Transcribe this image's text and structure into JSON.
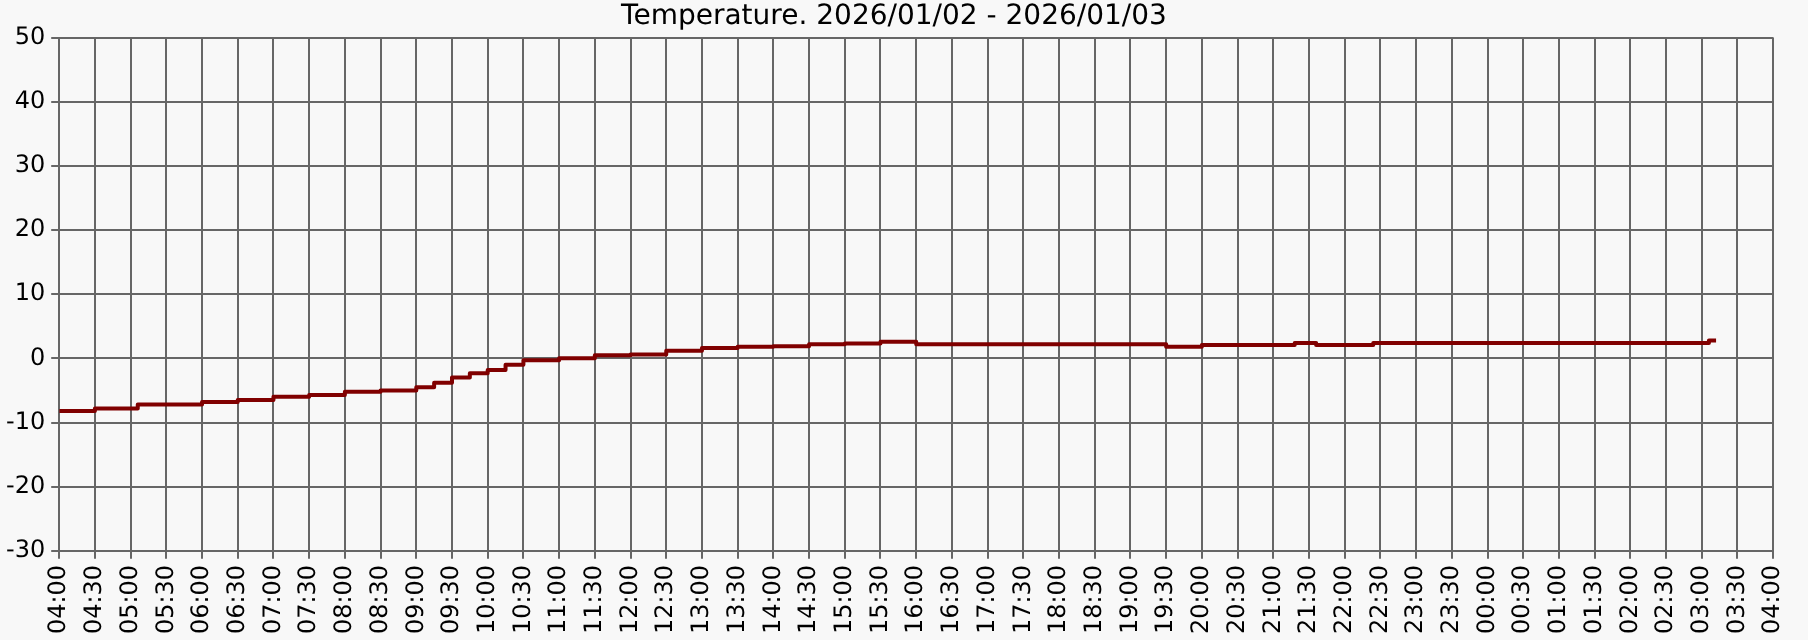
{
  "chart_data": {
    "type": "step",
    "title": "Temperature. 2026/01/02 - 2026/01/03",
    "x": [
      "2026-01-02T04:00",
      "2026-01-02T04:30",
      "2026-01-02T05:06",
      "2026-01-02T06:00",
      "2026-01-02T06:30",
      "2026-01-02T07:00",
      "2026-01-02T07:30",
      "2026-01-02T08:00",
      "2026-01-02T08:30",
      "2026-01-02T09:00",
      "2026-01-02T09:15",
      "2026-01-02T09:30",
      "2026-01-02T09:45",
      "2026-01-02T10:00",
      "2026-01-02T10:15",
      "2026-01-02T10:30",
      "2026-01-02T11:00",
      "2026-01-02T11:30",
      "2026-01-02T12:00",
      "2026-01-02T12:30",
      "2026-01-02T13:00",
      "2026-01-02T13:30",
      "2026-01-02T14:00",
      "2026-01-02T14:30",
      "2026-01-02T15:00",
      "2026-01-02T15:30",
      "2026-01-02T16:00",
      "2026-01-02T17:00",
      "2026-01-02T18:00",
      "2026-01-02T19:00",
      "2026-01-02T19:30",
      "2026-01-02T20:00",
      "2026-01-02T21:00",
      "2026-01-02T21:18",
      "2026-01-02T21:36",
      "2026-01-02T22:00",
      "2026-01-02T22:24",
      "2026-01-02T23:00",
      "2026-01-03T00:00",
      "2026-01-03T01:00",
      "2026-01-03T02:00",
      "2026-01-03T03:00",
      "2026-01-03T03:06",
      "2026-01-03T03:12"
    ],
    "values": [
      -8.2,
      -7.8,
      -7.2,
      -6.8,
      -6.5,
      -6.0,
      -5.7,
      -5.2,
      -5.0,
      -4.5,
      -3.8,
      -3.0,
      -2.3,
      -1.8,
      -1.0,
      -0.3,
      0.0,
      0.5,
      0.6,
      1.2,
      1.6,
      1.8,
      1.9,
      2.2,
      2.3,
      2.6,
      2.2,
      2.2,
      2.2,
      2.2,
      1.8,
      2.1,
      2.1,
      2.4,
      2.1,
      2.1,
      2.4,
      2.4,
      2.4,
      2.4,
      2.4,
      2.4,
      2.8,
      2.8
    ],
    "color": "#800000",
    "xlim": [
      "2026-01-02T04:00",
      "2026-01-03T04:00"
    ],
    "xticks": [
      {
        "value": "2026-01-02T04:00",
        "label": "04:00"
      },
      {
        "value": "2026-01-02T04:30",
        "label": "04:30"
      },
      {
        "value": "2026-01-02T05:00",
        "label": "05:00"
      },
      {
        "value": "2026-01-02T05:30",
        "label": "05:30"
      },
      {
        "value": "2026-01-02T06:00",
        "label": "06:00"
      },
      {
        "value": "2026-01-02T06:30",
        "label": "06:30"
      },
      {
        "value": "2026-01-02T07:00",
        "label": "07:00"
      },
      {
        "value": "2026-01-02T07:30",
        "label": "07:30"
      },
      {
        "value": "2026-01-02T08:00",
        "label": "08:00"
      },
      {
        "value": "2026-01-02T08:30",
        "label": "08:30"
      },
      {
        "value": "2026-01-02T09:00",
        "label": "09:00"
      },
      {
        "value": "2026-01-02T09:30",
        "label": "09:30"
      },
      {
        "value": "2026-01-02T10:00",
        "label": "10:00"
      },
      {
        "value": "2026-01-02T10:30",
        "label": "10:30"
      },
      {
        "value": "2026-01-02T11:00",
        "label": "11:00"
      },
      {
        "value": "2026-01-02T11:30",
        "label": "11:30"
      },
      {
        "value": "2026-01-02T12:00",
        "label": "12:00"
      },
      {
        "value": "2026-01-02T12:30",
        "label": "12:30"
      },
      {
        "value": "2026-01-02T13:00",
        "label": "13:00"
      },
      {
        "value": "2026-01-02T13:30",
        "label": "13:30"
      },
      {
        "value": "2026-01-02T14:00",
        "label": "14:00"
      },
      {
        "value": "2026-01-02T14:30",
        "label": "14:30"
      },
      {
        "value": "2026-01-02T15:00",
        "label": "15:00"
      },
      {
        "value": "2026-01-02T15:30",
        "label": "15:30"
      },
      {
        "value": "2026-01-02T16:00",
        "label": "16:00"
      },
      {
        "value": "2026-01-02T16:30",
        "label": "16:30"
      },
      {
        "value": "2026-01-02T17:00",
        "label": "17:00"
      },
      {
        "value": "2026-01-02T17:30",
        "label": "17:30"
      },
      {
        "value": "2026-01-02T18:00",
        "label": "18:00"
      },
      {
        "value": "2026-01-02T18:30",
        "label": "18:30"
      },
      {
        "value": "2026-01-02T19:00",
        "label": "19:00"
      },
      {
        "value": "2026-01-02T19:30",
        "label": "19:30"
      },
      {
        "value": "2026-01-02T20:00",
        "label": "20:00"
      },
      {
        "value": "2026-01-02T20:30",
        "label": "20:30"
      },
      {
        "value": "2026-01-02T21:00",
        "label": "21:00"
      },
      {
        "value": "2026-01-02T21:30",
        "label": "21:30"
      },
      {
        "value": "2026-01-02T22:00",
        "label": "22:00"
      },
      {
        "value": "2026-01-02T22:30",
        "label": "22:30"
      },
      {
        "value": "2026-01-02T23:00",
        "label": "23:00"
      },
      {
        "value": "2026-01-02T23:30",
        "label": "23:30"
      },
      {
        "value": "2026-01-03T00:00",
        "label": "00:00"
      },
      {
        "value": "2026-01-03T00:30",
        "label": "00:30"
      },
      {
        "value": "2026-01-03T01:00",
        "label": "01:00"
      },
      {
        "value": "2026-01-03T01:30",
        "label": "01:30"
      },
      {
        "value": "2026-01-03T02:00",
        "label": "02:00"
      },
      {
        "value": "2026-01-03T02:30",
        "label": "02:30"
      },
      {
        "value": "2026-01-03T03:00",
        "label": "03:00"
      },
      {
        "value": "2026-01-03T03:30",
        "label": "03:30"
      },
      {
        "value": "2026-01-03T04:00",
        "label": "04:00"
      }
    ],
    "ylim": [
      -30,
      50
    ],
    "yticks": [
      -30,
      -20,
      -10,
      0,
      10,
      20,
      30,
      40,
      50
    ],
    "grid": true,
    "legend": false,
    "marker": "none",
    "line_style": "solid"
  }
}
